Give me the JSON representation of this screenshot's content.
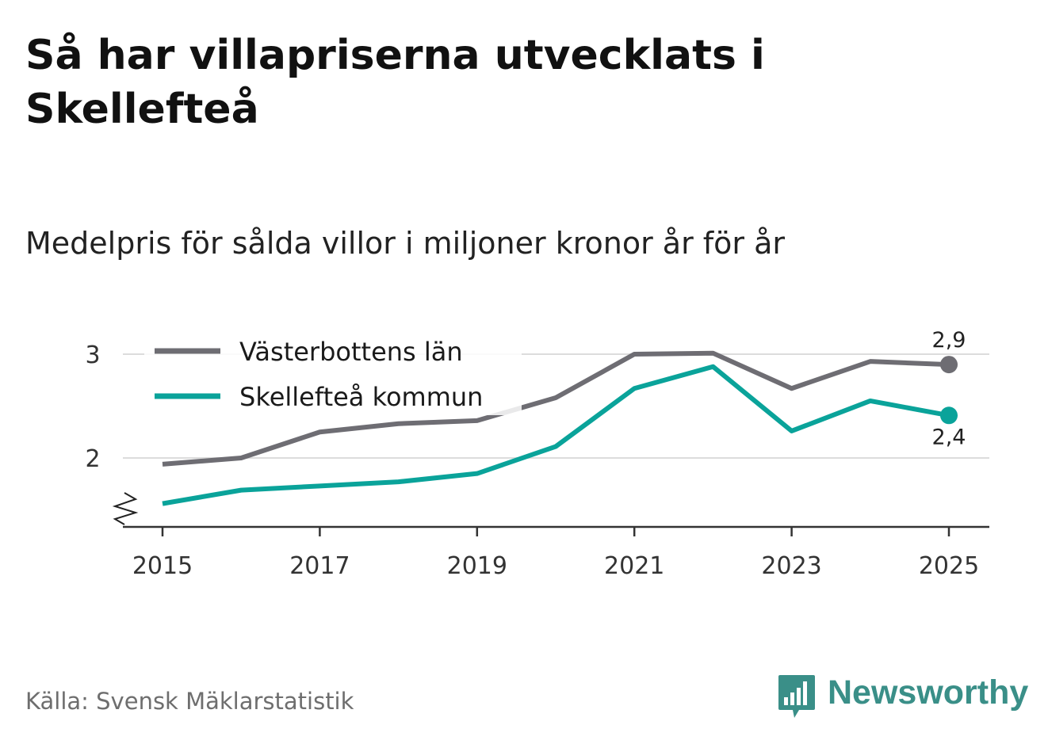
{
  "title": "Så har villapriserna utvecklats i Skellefteå",
  "subtitle": "Medelpris för sålda villor i miljoner kronor år för år",
  "source": "Källa: Svensk Mäklarstatistik",
  "brand": {
    "name": "Newsworthy",
    "icon": "newsworthy-logo-icon",
    "color": "#3a8f88"
  },
  "chart_data": {
    "type": "line",
    "title": "Så har villapriserna utvecklats i Skellefteå",
    "subtitle": "Medelpris för sålda villor i miljoner kronor år för år",
    "xlabel": "",
    "ylabel": "",
    "x": [
      2015,
      2016,
      2017,
      2018,
      2019,
      2020,
      2021,
      2022,
      2023,
      2024,
      2025
    ],
    "x_tick_labels": [
      "2015",
      "2017",
      "2019",
      "2021",
      "2023",
      "2025"
    ],
    "y_tick_labels": [
      "2",
      "3"
    ],
    "y_ticks": [
      2,
      3
    ],
    "ylim": [
      1.33,
      3.05
    ],
    "y_axis_broken": true,
    "grid": true,
    "legend_position": "top-left",
    "series": [
      {
        "name": "Västerbottens län",
        "color": "#6e6d73",
        "values": [
          1.94,
          2.0,
          2.25,
          2.33,
          2.36,
          2.58,
          3.0,
          3.01,
          2.67,
          2.93,
          2.9
        ],
        "end_label": "2,9"
      },
      {
        "name": "Skellefteå kommun",
        "color": "#0aa39a",
        "values": [
          1.56,
          1.69,
          1.73,
          1.77,
          1.85,
          2.11,
          2.67,
          2.88,
          2.26,
          2.55,
          2.41
        ],
        "end_label": "2,4"
      }
    ]
  }
}
